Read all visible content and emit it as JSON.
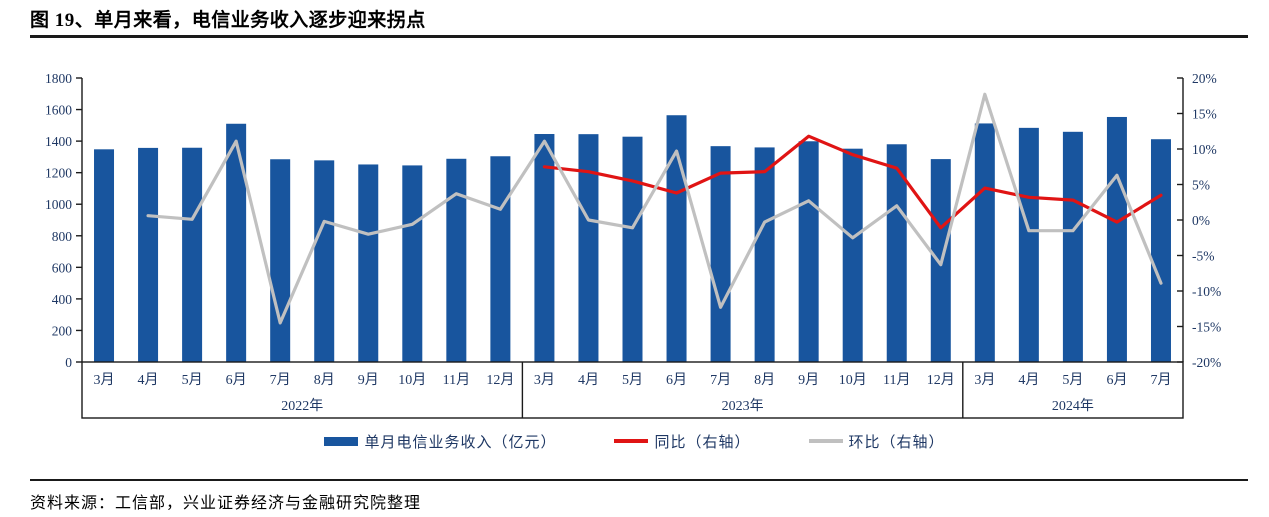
{
  "title": "图 19、单月来看，电信业务收入逐步迎来拐点",
  "source": "资料来源：工信部，兴业证券经济与金融研究院整理",
  "colors": {
    "bar": "#18559E",
    "yoy_line": "#E01414",
    "mom_line": "#C0C0C0",
    "axis_text": "#1F3864",
    "axis_line": "#1a1a1a"
  },
  "legend": [
    {
      "label": "单月电信业务收入（亿元）",
      "type": "bar",
      "color": "#18559E"
    },
    {
      "label": "同比（右轴）",
      "type": "line",
      "color": "#E01414"
    },
    {
      "label": "环比（右轴）",
      "type": "line",
      "color": "#C0C0C0"
    }
  ],
  "chart_data": {
    "type": "bar+line combo",
    "left_axis": {
      "min": 0,
      "max": 1800,
      "step": 200,
      "suffix": ""
    },
    "right_axis": {
      "min": -20,
      "max": 20,
      "step": 5,
      "suffix": "%"
    },
    "groups": [
      {
        "year": "2022年",
        "months": [
          "3月",
          "4月",
          "5月",
          "6月",
          "7月",
          "8月",
          "9月",
          "10月",
          "11月",
          "12月"
        ]
      },
      {
        "year": "2023年",
        "months": [
          "3月",
          "4月",
          "5月",
          "6月",
          "7月",
          "8月",
          "9月",
          "10月",
          "11月",
          "12月"
        ]
      },
      {
        "year": "2024年",
        "months": [
          "3月",
          "4月",
          "5月",
          "6月",
          "7月"
        ]
      }
    ],
    "series": [
      {
        "name": "单月电信业务收入（亿元）",
        "type": "bar",
        "axis": "left",
        "color": "#18559E",
        "values": [
          1348,
          1357,
          1358,
          1510,
          1285,
          1278,
          1252,
          1246,
          1288,
          1304,
          1445,
          1444,
          1428,
          1564,
          1368,
          1360,
          1399,
          1352,
          1380,
          1286,
          1512,
          1484,
          1459,
          1553,
          1412
        ]
      },
      {
        "name": "同比（右轴）",
        "type": "line",
        "axis": "right",
        "color": "#E01414",
        "values": [
          null,
          null,
          null,
          null,
          null,
          null,
          null,
          null,
          null,
          null,
          7.5,
          6.8,
          5.5,
          3.8,
          6.6,
          6.8,
          11.8,
          9.2,
          7.3,
          -1.1,
          4.5,
          3.2,
          2.8,
          -0.3,
          3.5
        ]
      },
      {
        "name": "环比（右轴）",
        "type": "line",
        "axis": "right",
        "color": "#C0C0C0",
        "values": [
          null,
          0.6,
          0.1,
          11.1,
          -14.5,
          -0.2,
          -2.0,
          -0.6,
          3.7,
          1.5,
          11.1,
          0.0,
          -1.1,
          9.7,
          -12.3,
          -0.3,
          2.7,
          -2.5,
          2.0,
          -6.3,
          17.7,
          -1.5,
          -1.5,
          6.3,
          -8.9
        ]
      }
    ]
  }
}
